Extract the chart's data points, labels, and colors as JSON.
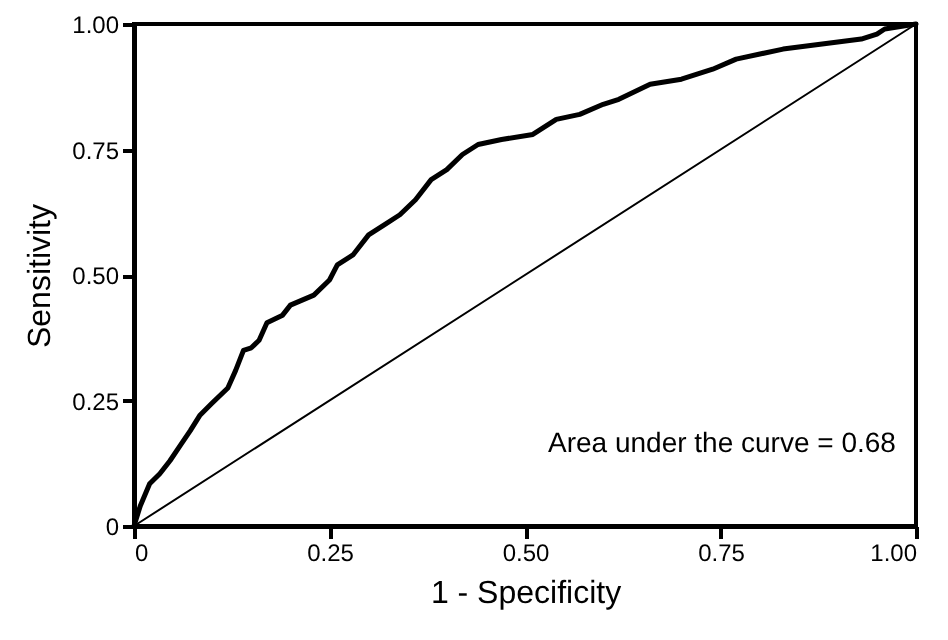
{
  "chart_data": {
    "type": "line",
    "xlabel": "1 - Specificity",
    "ylabel": "Sensitivity",
    "xlim": [
      0,
      1
    ],
    "ylim": [
      0,
      1
    ],
    "xticks": [
      {
        "value": 0,
        "label": "0"
      },
      0.25,
      {
        "value": 0.5,
        "label": "0.50"
      },
      0.75,
      {
        "value": 1,
        "label": "1.00"
      }
    ],
    "yticks": [
      {
        "value": 0,
        "label": "0"
      },
      0.25,
      {
        "value": 0.5,
        "label": "0.50"
      },
      0.75,
      {
        "value": 1,
        "label": "1.00"
      }
    ],
    "grid": false,
    "marker": "none",
    "line_style": "solid",
    "annotations": [
      "Area under the curve = 0.68"
    ],
    "series": [
      {
        "color": "#000000",
        "x": [
          0,
          0.008,
          0.02,
          0.033,
          0.046,
          0.059,
          0.072,
          0.084,
          0.1,
          0.12,
          0.13,
          0.14,
          0.15,
          0.16,
          0.17,
          0.19,
          0.2,
          0.23,
          0.25,
          0.26,
          0.28,
          0.3,
          0.32,
          0.34,
          0.36,
          0.38,
          0.4,
          0.42,
          0.44,
          0.47,
          0.51,
          0.52,
          0.54,
          0.57,
          0.6,
          0.62,
          0.66,
          0.7,
          0.74,
          0.77,
          0.83,
          0.93,
          0.95,
          0.96,
          1
        ],
        "values": [
          0,
          0.04,
          0.084,
          0.104,
          0.13,
          0.16,
          0.19,
          0.22,
          0.245,
          0.275,
          0.31,
          0.35,
          0.355,
          0.37,
          0.405,
          0.42,
          0.44,
          0.46,
          0.49,
          0.52,
          0.54,
          0.58,
          0.6,
          0.62,
          0.65,
          0.69,
          0.71,
          0.74,
          0.76,
          0.77,
          0.78,
          0.79,
          0.81,
          0.82,
          0.84,
          0.85,
          0.88,
          0.89,
          0.91,
          0.93,
          0.95,
          0.97,
          0.98,
          0.99,
          1
        ]
      },
      {
        "color": "#000000",
        "x": [
          0,
          1
        ],
        "values": [
          0,
          1
        ]
      }
    ]
  }
}
